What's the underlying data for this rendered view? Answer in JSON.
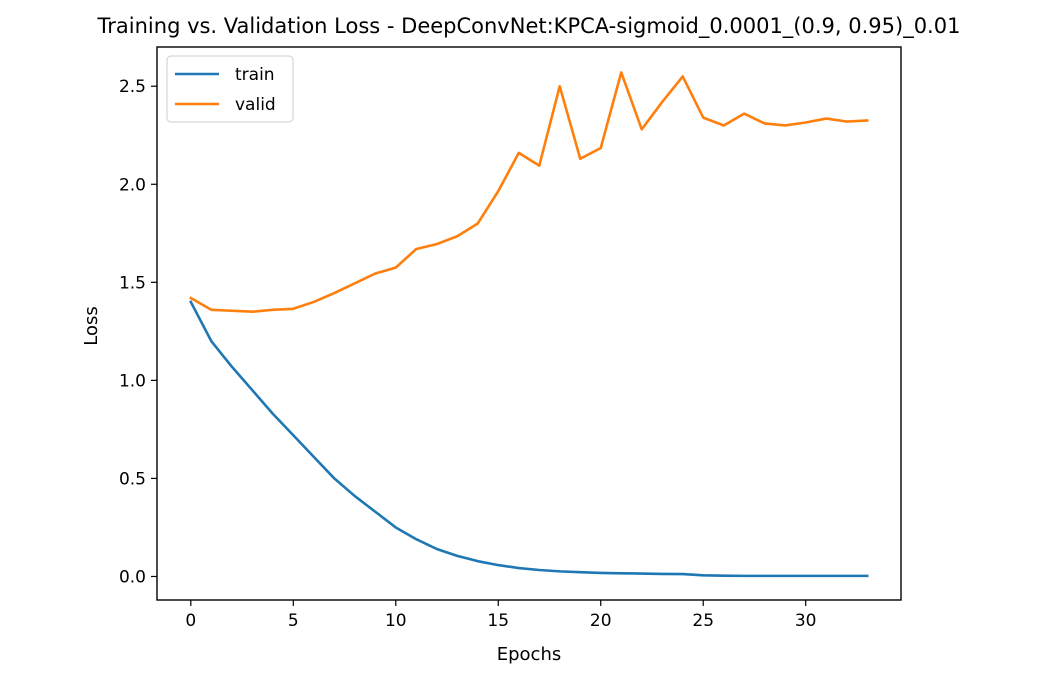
{
  "chart_data": {
    "type": "line",
    "title": "Training vs. Validation Loss - DeepConvNet:KPCA-sigmoid_0.0001_(0.9, 0.95)_0.01",
    "xlabel": "Epochs",
    "ylabel": "Loss",
    "xlim": [
      -1.65,
      34.65
    ],
    "ylim": [
      -0.12,
      2.7
    ],
    "xticks": [
      0,
      5,
      10,
      15,
      20,
      25,
      30
    ],
    "yticks": [
      0.0,
      0.5,
      1.0,
      1.5,
      2.0,
      2.5
    ],
    "xtick_labels": [
      "0",
      "5",
      "10",
      "15",
      "20",
      "25",
      "30"
    ],
    "ytick_labels": [
      "0.0",
      "0.5",
      "1.0",
      "1.5",
      "2.0",
      "2.5"
    ],
    "grid": false,
    "legend_position": "top-left",
    "x": [
      0,
      1,
      2,
      3,
      4,
      5,
      6,
      7,
      8,
      9,
      10,
      11,
      12,
      13,
      14,
      15,
      16,
      17,
      18,
      19,
      20,
      21,
      22,
      23,
      24,
      25,
      26,
      27,
      28,
      29,
      30,
      31,
      32,
      33
    ],
    "series": [
      {
        "name": "train",
        "color": "#1f77b4",
        "values": [
          1.4,
          1.2,
          1.07,
          0.95,
          0.83,
          0.72,
          0.61,
          0.5,
          0.41,
          0.33,
          0.25,
          0.19,
          0.14,
          0.105,
          0.078,
          0.058,
          0.043,
          0.033,
          0.026,
          0.022,
          0.018,
          0.016,
          0.015,
          0.013,
          0.012,
          0.006,
          0.004,
          0.003,
          0.003,
          0.003,
          0.003,
          0.003,
          0.003,
          0.003
        ]
      },
      {
        "name": "valid",
        "color": "#ff7f0e",
        "values": [
          1.42,
          1.36,
          1.355,
          1.35,
          1.36,
          1.365,
          1.4,
          1.445,
          1.495,
          1.545,
          1.575,
          1.67,
          1.695,
          1.735,
          1.8,
          1.965,
          2.16,
          2.095,
          2.5,
          2.13,
          2.185,
          2.57,
          2.28,
          2.42,
          2.55,
          2.34,
          2.3,
          2.36,
          2.31,
          2.3,
          2.315,
          2.335,
          2.32,
          2.325
        ]
      }
    ]
  }
}
